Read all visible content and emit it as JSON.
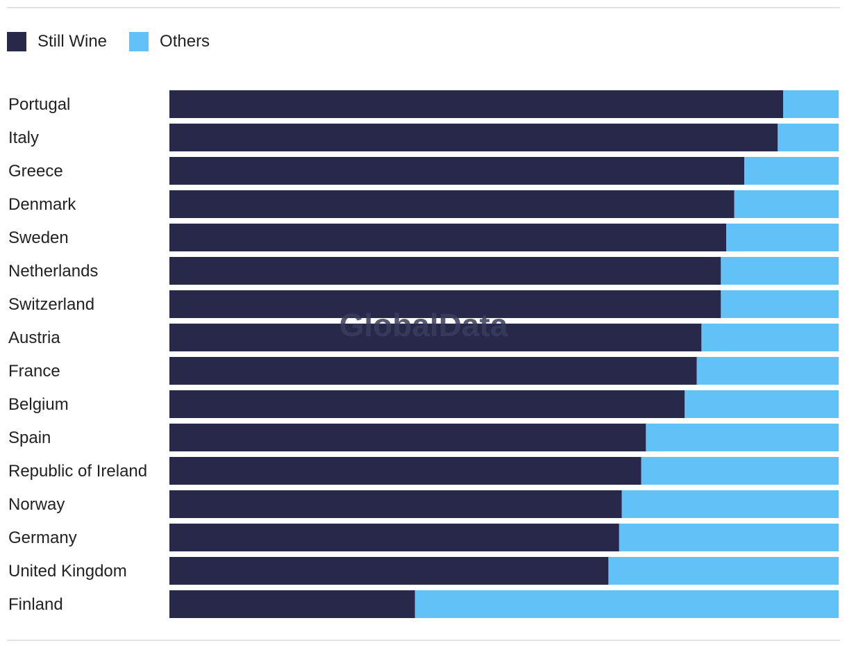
{
  "legend": [
    {
      "label": "Still Wine",
      "color": "#28284b"
    },
    {
      "label": "Others",
      "color": "#62c1f7"
    }
  ],
  "watermark": "GlobalData",
  "chart_data": {
    "type": "bar",
    "orientation": "horizontal",
    "stacked": true,
    "normalized": true,
    "title": "",
    "xlabel": "",
    "ylabel": "",
    "xlim": [
      0,
      100
    ],
    "grid": false,
    "legend_position": "top-left",
    "categories": [
      "Portugal",
      "Italy",
      "Greece",
      "Denmark",
      "Sweden",
      "Netherlands",
      "Switzerland",
      "Austria",
      "France",
      "Belgium",
      "Spain",
      "Republic of Ireland",
      "Norway",
      "Germany",
      "United Kingdom",
      "Finland"
    ],
    "series": [
      {
        "name": "Still Wine",
        "color": "#28284b",
        "values": [
          91.7,
          90.9,
          85.9,
          84.4,
          83.2,
          82.4,
          82.4,
          79.5,
          78.8,
          77.0,
          71.2,
          70.5,
          67.6,
          67.2,
          65.6,
          36.7
        ]
      },
      {
        "name": "Others",
        "color": "#62c1f7",
        "values": [
          8.3,
          9.1,
          14.1,
          15.6,
          16.8,
          17.6,
          17.6,
          20.5,
          21.2,
          23.0,
          28.8,
          29.5,
          32.4,
          32.8,
          34.4,
          63.3
        ]
      }
    ]
  }
}
